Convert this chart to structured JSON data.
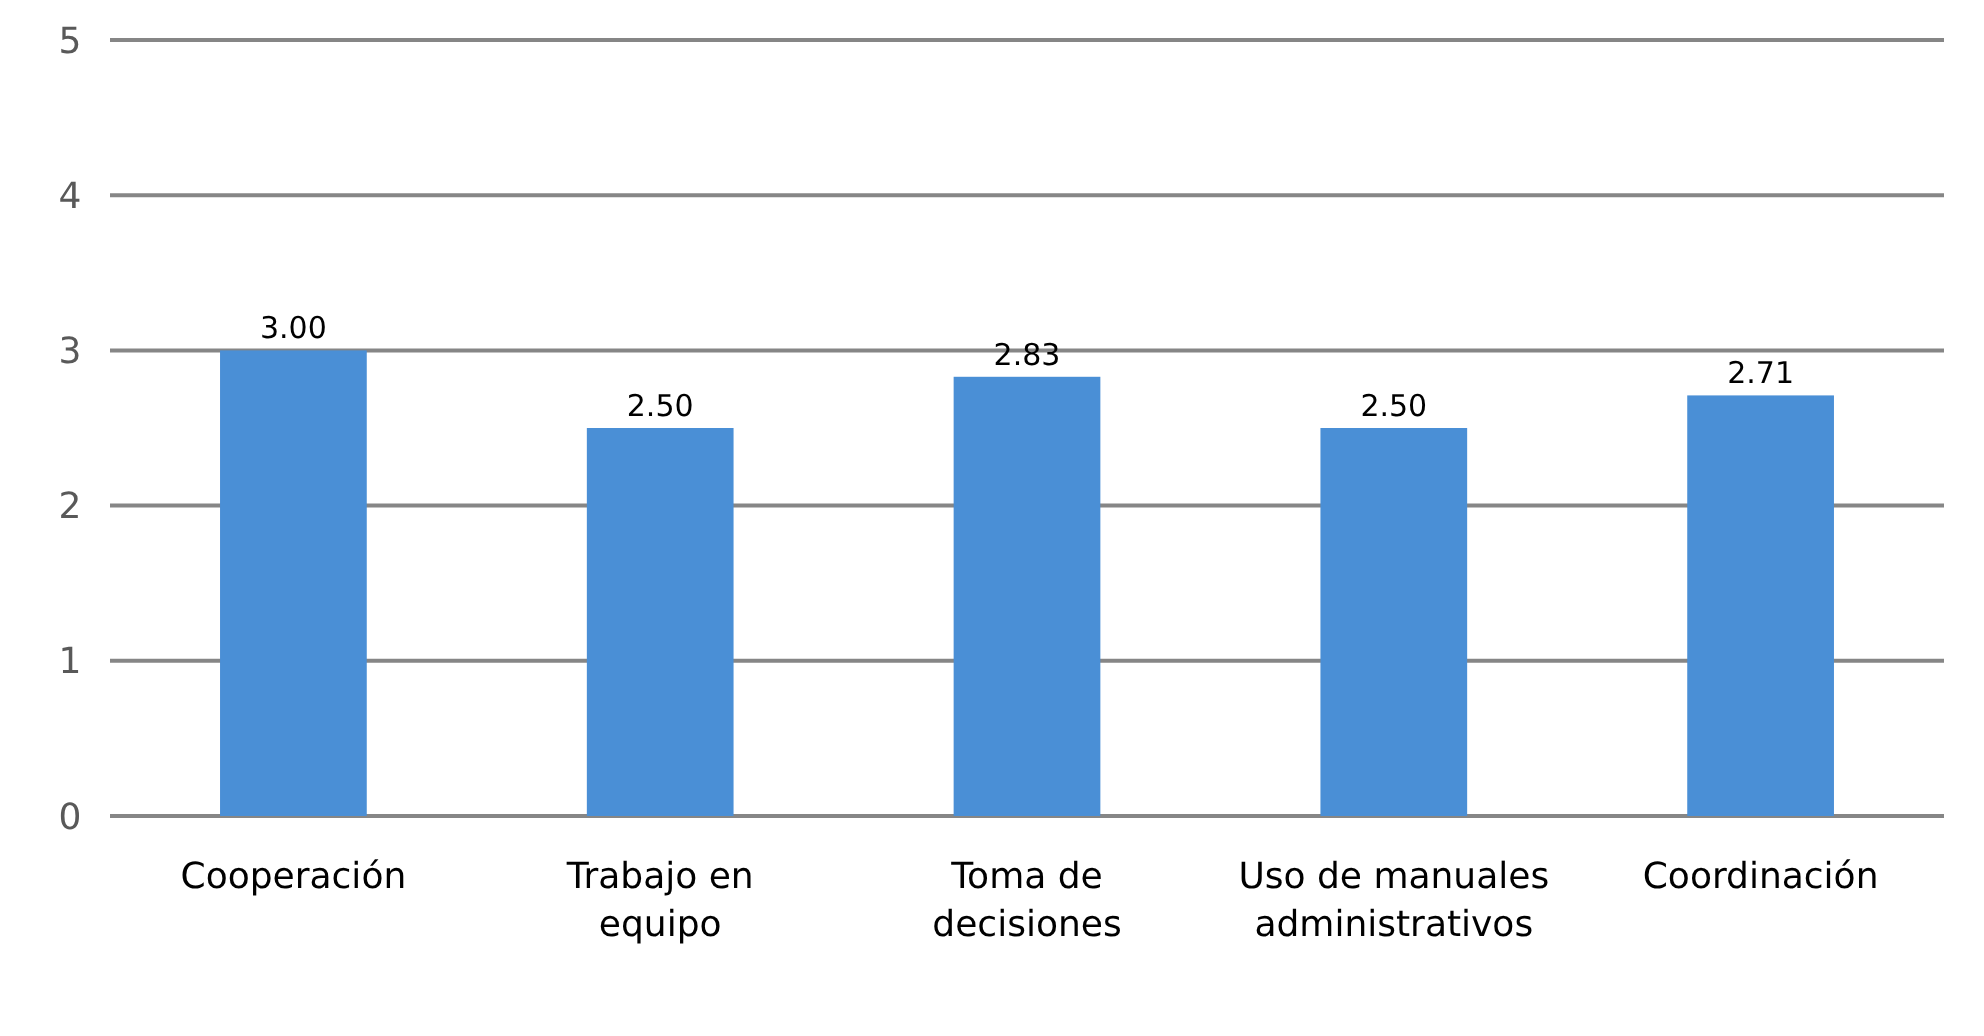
{
  "chart_data": {
    "type": "bar",
    "categories": [
      "Cooperación",
      "Trabajo en equipo",
      "Toma de decisiones",
      "Uso de manuales administrativos",
      "Coordinación"
    ],
    "values": [
      3.0,
      2.5,
      2.83,
      2.5,
      2.71
    ],
    "value_labels": [
      "3.00",
      "2.50",
      "2.83",
      "2.50",
      "2.71"
    ],
    "color": "#4a8fd6",
    "ylim": [
      0,
      5
    ],
    "yticks": [
      0,
      1,
      2,
      3,
      4,
      5
    ],
    "grid": "y"
  }
}
